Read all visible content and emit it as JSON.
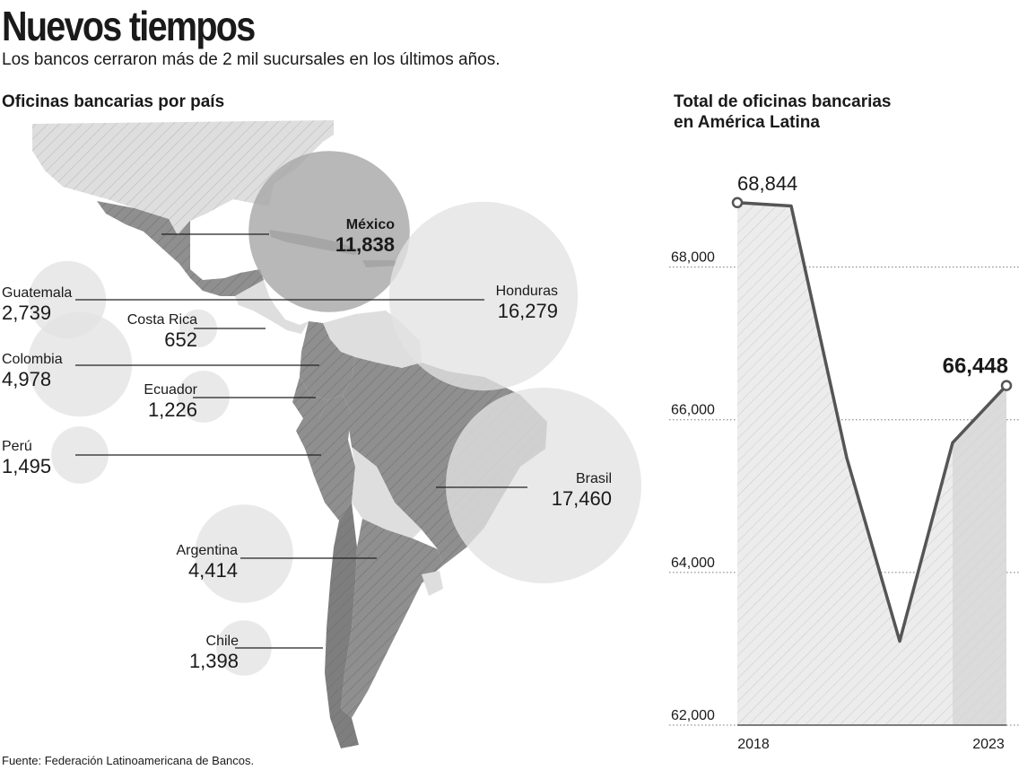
{
  "header": {
    "title": "Nuevos tiempos",
    "subtitle": "Los bancos cerraron más de 2 mil sucursales en los últimos años."
  },
  "map_section": {
    "title": "Oficinas bancarias por país"
  },
  "line_section": {
    "title_line1": "Total de oficinas bancarias",
    "title_line2": "en América Latina"
  },
  "source": "Fuente: Federación Latinoamericana de Bancos.",
  "colors": {
    "bubble_light": "#e3e3e3",
    "bubble_dark": "#a8a8a8",
    "land": "#8f8f8f",
    "land_light": "#dedede",
    "line": "#555555"
  },
  "chart_data": [
    {
      "type": "bubble",
      "title": "Oficinas bancarias por país",
      "categories": [
        "México",
        "Guatemala",
        "Honduras",
        "Costa Rica",
        "Colombia",
        "Ecuador",
        "Perú",
        "Brasil",
        "Argentina",
        "Chile"
      ],
      "values": [
        11838,
        2739,
        16279,
        652,
        4978,
        1226,
        1495,
        17460,
        4414,
        1398
      ],
      "labels": [
        "11,838",
        "2,739",
        "16,279",
        "652",
        "4,978",
        "1,226",
        "1,495",
        "17,460",
        "4,414",
        "1,398"
      ],
      "highlight": "México"
    },
    {
      "type": "area",
      "title": "Total de oficinas bancarias en América Latina",
      "x_labels": [
        "2018",
        "2023"
      ],
      "y": [
        68844,
        68800,
        65500,
        63100,
        65700,
        66448
      ],
      "ylim": [
        62000,
        69500
      ],
      "yticks": [
        62000,
        64000,
        66000,
        68000
      ],
      "ytick_labels": [
        "62,000",
        "64,000",
        "66,000",
        "68,000"
      ],
      "annotations": [
        {
          "index": 0,
          "label": "68,844"
        },
        {
          "index": 5,
          "label": "66,448"
        }
      ],
      "grid": true
    }
  ]
}
